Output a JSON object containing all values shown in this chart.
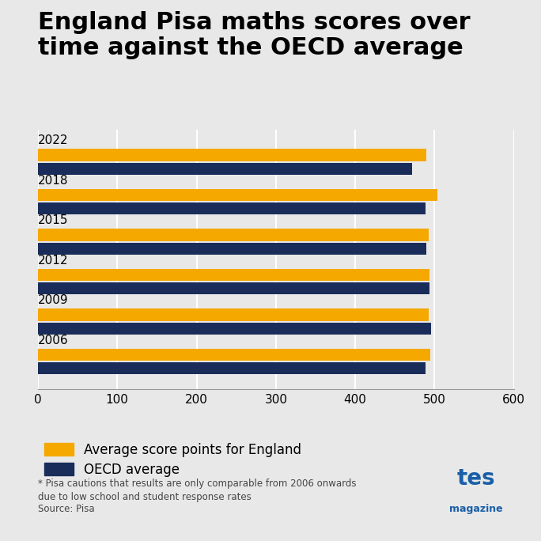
{
  "title": "England Pisa maths scores over\ntime against the OECD average",
  "years": [
    "2006",
    "2009",
    "2012",
    "2015",
    "2018",
    "2022"
  ],
  "england_scores": [
    495,
    493,
    494,
    493,
    504,
    490
  ],
  "oecd_scores": [
    489,
    496,
    494,
    490,
    489,
    472
  ],
  "england_color": "#F5A800",
  "oecd_color": "#1A2D5A",
  "background_color": "#E8E8E8",
  "xlim": [
    0,
    600
  ],
  "xticks": [
    0,
    100,
    200,
    300,
    400,
    500,
    600
  ],
  "bar_height": 0.3,
  "bar_gap": 0.04,
  "legend_england": "Average score points for England",
  "legend_oecd": "OECD average",
  "footnote": "* Pisa cautions that results are only comparable from 2006 onwards\ndue to low school and student response rates",
  "source": "Source: Pisa",
  "title_fontsize": 22,
  "year_fontsize": 11,
  "tick_fontsize": 11,
  "legend_fontsize": 12,
  "footnote_fontsize": 8.5,
  "tes_color": "#1A5FA8"
}
